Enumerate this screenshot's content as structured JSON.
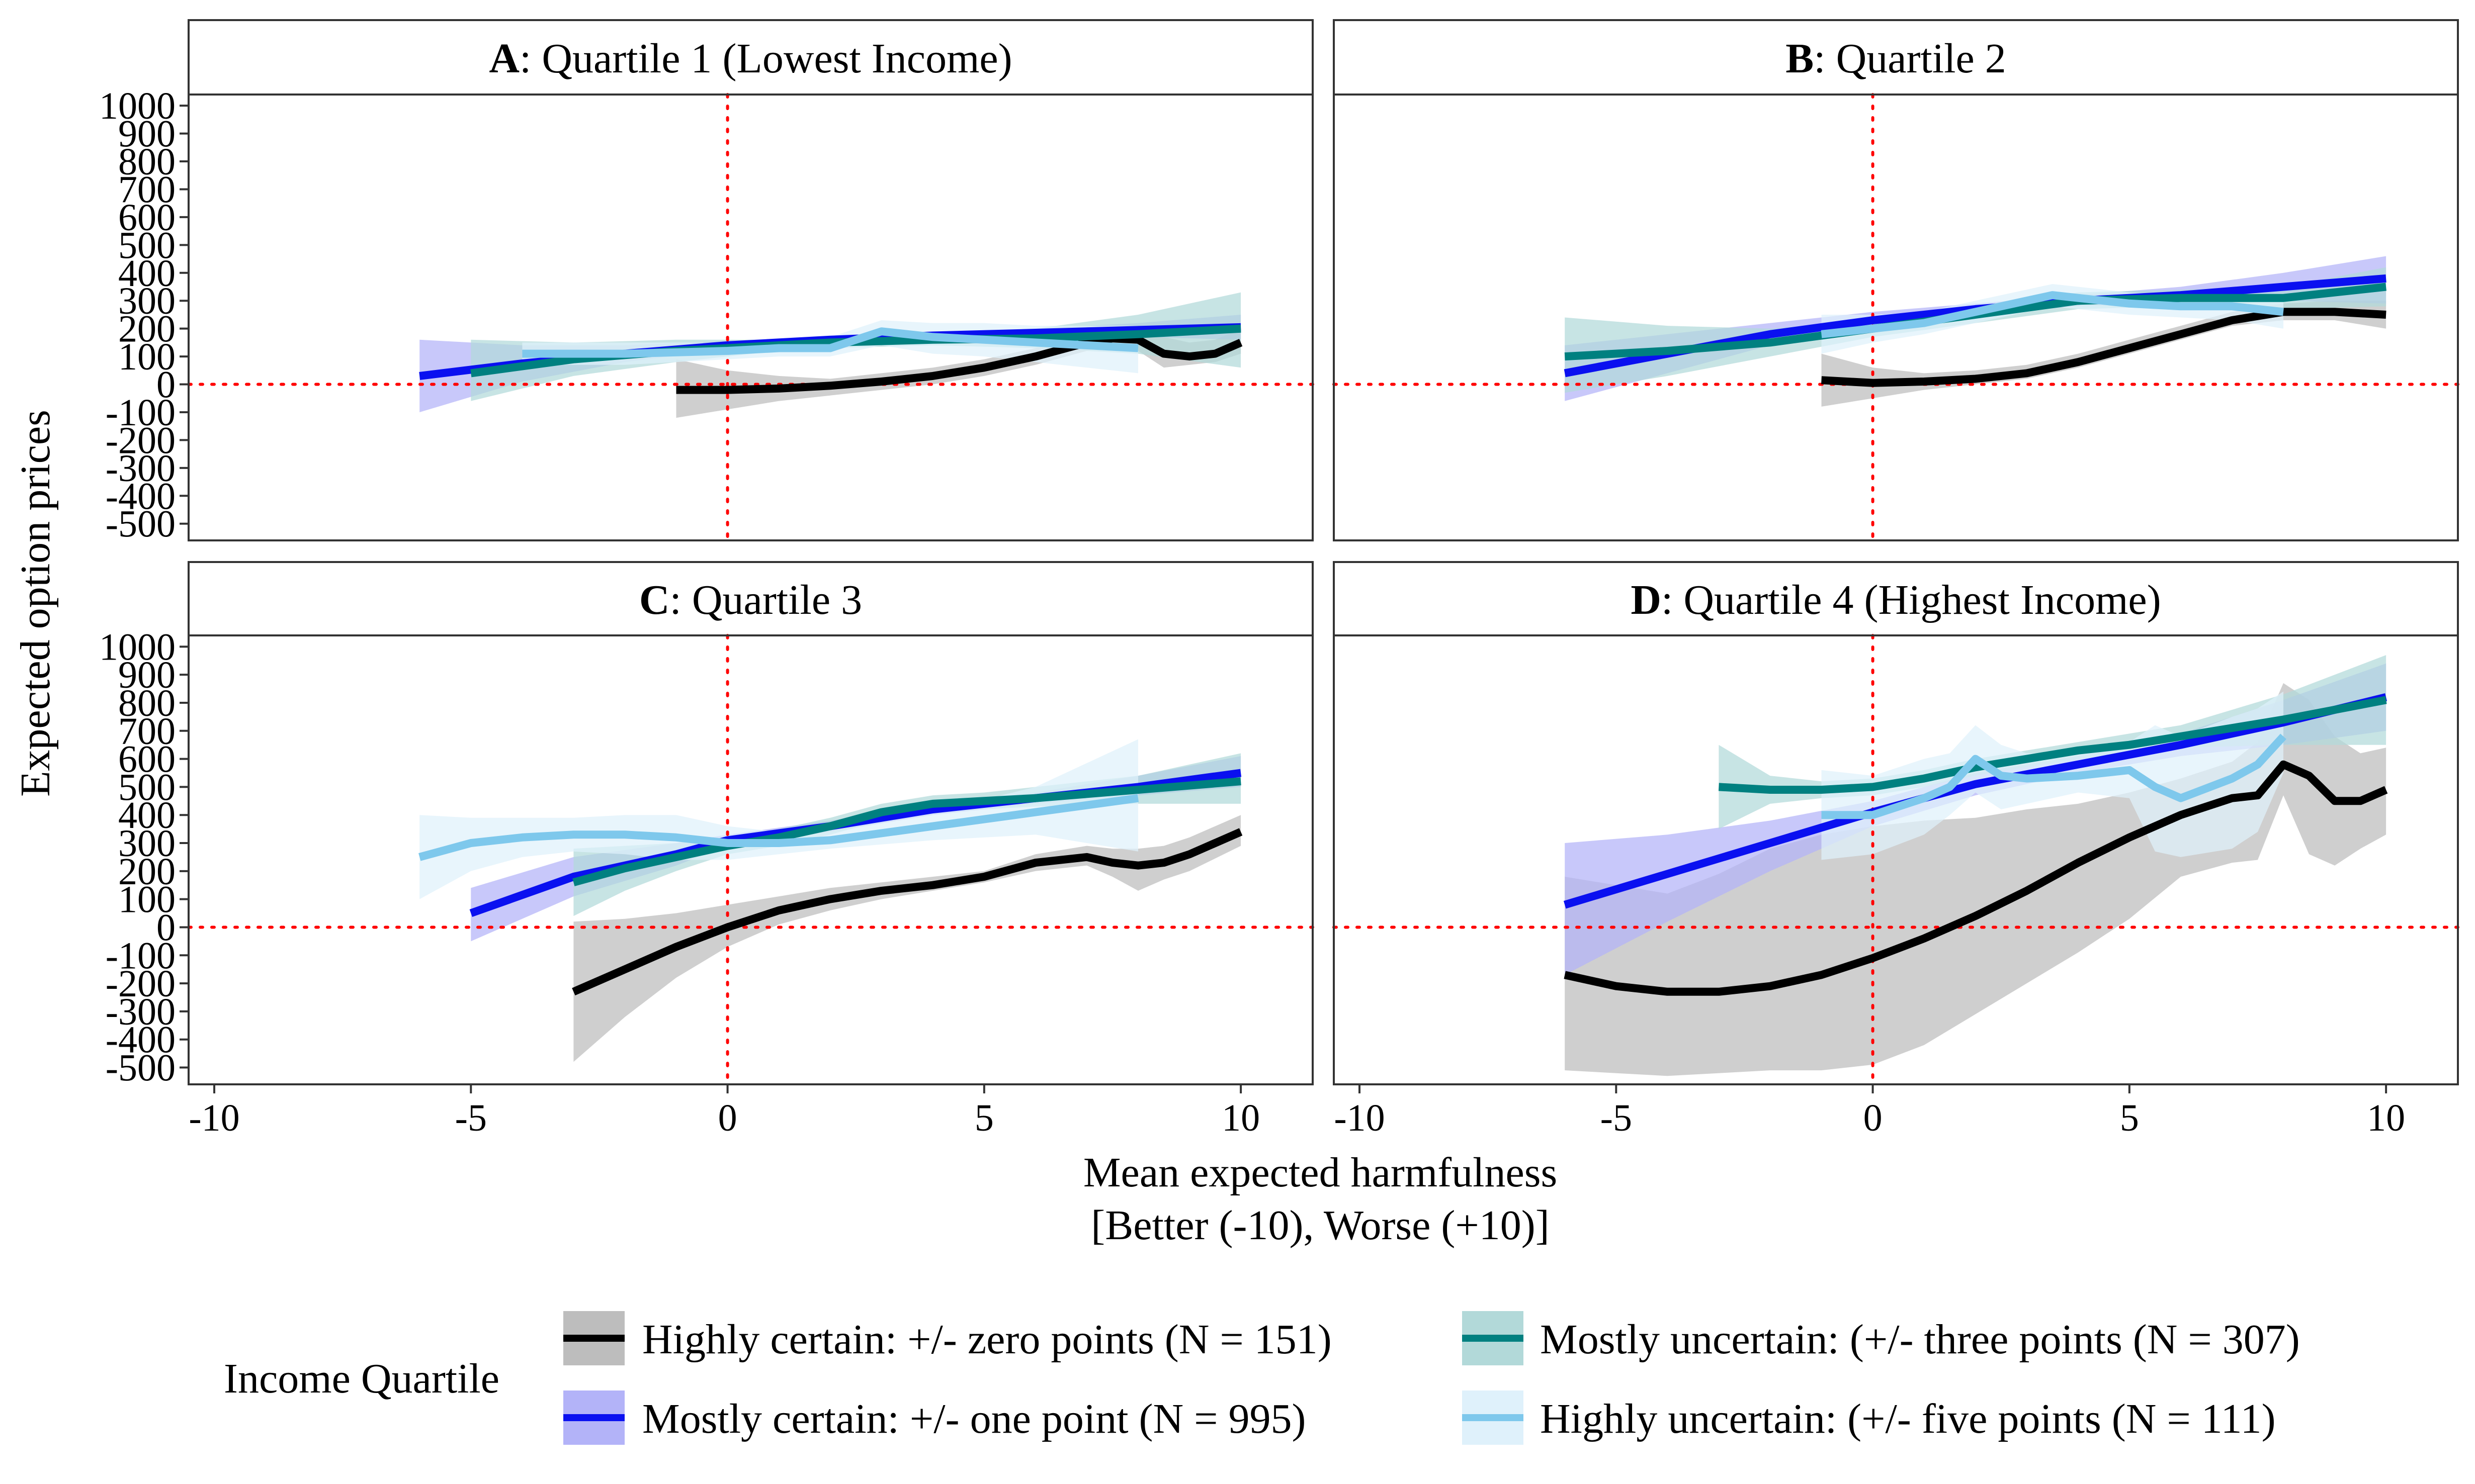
{
  "figure": {
    "xlabel_line1": "Mean expected harmfulness",
    "xlabel_line2": "[Better (-10), Worse (+10)]",
    "ylabel": "Expected option prices"
  },
  "axes": {
    "x_ticks": [
      -10,
      -5,
      0,
      5,
      10
    ],
    "y_ticks": [
      -500,
      -400,
      -300,
      -200,
      -100,
      0,
      100,
      200,
      300,
      400,
      500,
      600,
      700,
      800,
      900,
      1000
    ],
    "xlim": [
      -10.5,
      11.4
    ],
    "ylim": [
      -560,
      1040
    ],
    "reference_lines": {
      "x": 0,
      "y": 0,
      "color": "#ff0000",
      "style": "dotted"
    }
  },
  "legend": {
    "title": "Income Quartile",
    "items": [
      {
        "label": "Highly certain: +/- zero points (N = 151)",
        "color": "#000000",
        "band": "#bdbdbd"
      },
      {
        "label": "Mostly certain: +/- one point (N = 995)",
        "color": "#0a10f0",
        "band": "#b3b3f8"
      },
      {
        "label": "Mostly uncertain: (+/- three points (N = 307)",
        "color": "#008080",
        "band": "#b2d9d9"
      },
      {
        "label": "Highly uncertain: (+/- five points (N = 111)",
        "color": "#7ec8ec",
        "band": "#dff1fb"
      }
    ]
  },
  "chart_data": [
    {
      "type": "line",
      "panel": "A",
      "title_letter": "A",
      "title_rest": ": Quartile 1 (Lowest Income)",
      "series": [
        {
          "name": "Highly certain: +/- zero points (N = 151)",
          "color": "#000000",
          "band_color": "#bdbdbd",
          "x": [
            -1,
            0,
            1,
            2,
            3,
            4,
            5,
            6,
            7,
            7.5,
            8,
            8.5,
            9,
            9.5,
            10
          ],
          "y": [
            -20,
            -20,
            -15,
            -5,
            10,
            30,
            60,
            100,
            150,
            165,
            160,
            110,
            100,
            110,
            150
          ],
          "lower": [
            -120,
            -90,
            -60,
            -40,
            -20,
            0,
            30,
            70,
            120,
            140,
            120,
            60,
            70,
            80,
            110
          ],
          "upper": [
            90,
            50,
            30,
            20,
            40,
            60,
            90,
            130,
            180,
            200,
            200,
            170,
            150,
            160,
            200
          ]
        },
        {
          "name": "Mostly certain: +/- one point (N = 995)",
          "color": "#0a10f0",
          "band_color": "#b3b3f8",
          "x": [
            -6,
            -4,
            -2,
            0,
            2,
            4,
            6,
            8,
            10
          ],
          "y": [
            30,
            75,
            110,
            140,
            160,
            175,
            185,
            195,
            205
          ],
          "lower": [
            -100,
            10,
            80,
            125,
            150,
            165,
            170,
            170,
            160
          ],
          "upper": [
            160,
            140,
            140,
            155,
            170,
            185,
            200,
            220,
            250
          ]
        },
        {
          "name": "Mostly uncertain: (+/- three points (N = 307)",
          "color": "#008080",
          "band_color": "#b2d9d9",
          "x": [
            -5,
            -3,
            -1,
            0,
            1,
            2,
            4,
            6,
            8,
            10
          ],
          "y": [
            40,
            90,
            120,
            130,
            140,
            150,
            160,
            165,
            180,
            200
          ],
          "lower": [
            -60,
            30,
            80,
            100,
            120,
            130,
            140,
            130,
            110,
            60
          ],
          "upper": [
            160,
            150,
            160,
            160,
            160,
            170,
            180,
            200,
            250,
            330
          ]
        },
        {
          "name": "Highly uncertain: (+/- five points (N = 111)",
          "color": "#7ec8ec",
          "band_color": "#dff1fb",
          "x": [
            -4,
            -2,
            0,
            1,
            2,
            2.5,
            3,
            4,
            5,
            6,
            7,
            8
          ],
          "y": [
            110,
            110,
            120,
            130,
            130,
            160,
            190,
            170,
            160,
            150,
            140,
            130
          ],
          "lower": [
            70,
            70,
            90,
            100,
            100,
            120,
            140,
            110,
            100,
            80,
            60,
            40
          ],
          "upper": [
            150,
            150,
            150,
            160,
            170,
            200,
            230,
            220,
            220,
            210,
            210,
            210
          ]
        }
      ]
    },
    {
      "type": "line",
      "panel": "B",
      "title_letter": "B",
      "title_rest": ": Quartile 2",
      "series": [
        {
          "name": "Highly certain: +/- zero points (N = 151)",
          "color": "#000000",
          "band_color": "#bdbdbd",
          "x": [
            -1,
            0,
            1,
            2,
            3,
            4,
            5,
            6,
            7,
            8,
            9,
            10
          ],
          "y": [
            15,
            5,
            10,
            20,
            40,
            80,
            130,
            180,
            230,
            260,
            260,
            250
          ],
          "lower": [
            -80,
            -50,
            -20,
            0,
            20,
            60,
            110,
            160,
            210,
            230,
            230,
            200
          ],
          "upper": [
            110,
            60,
            40,
            50,
            70,
            110,
            160,
            210,
            260,
            290,
            300,
            300
          ]
        },
        {
          "name": "Mostly certain: +/- one point (N = 995)",
          "color": "#0a10f0",
          "band_color": "#b3b3f8",
          "x": [
            -6,
            -4,
            -2,
            0,
            2,
            4,
            6,
            8,
            10
          ],
          "y": [
            40,
            110,
            180,
            230,
            270,
            300,
            320,
            350,
            380
          ],
          "lower": [
            -60,
            40,
            140,
            200,
            250,
            280,
            290,
            300,
            290
          ],
          "upper": [
            140,
            180,
            220,
            260,
            290,
            320,
            350,
            400,
            460
          ]
        },
        {
          "name": "Mostly uncertain: (+/- three points (N = 307)",
          "color": "#008080",
          "band_color": "#b2d9d9",
          "x": [
            -6,
            -4,
            -2,
            0,
            2,
            4,
            6,
            8,
            10
          ],
          "y": [
            100,
            120,
            150,
            200,
            250,
            300,
            310,
            310,
            350
          ],
          "lower": [
            -30,
            30,
            100,
            170,
            220,
            270,
            280,
            270,
            280
          ],
          "upper": [
            240,
            210,
            200,
            230,
            280,
            330,
            340,
            350,
            420
          ]
        },
        {
          "name": "Highly uncertain: (+/- five points (N = 111)",
          "color": "#7ec8ec",
          "band_color": "#dff1fb",
          "x": [
            -1,
            0,
            1,
            2,
            3,
            3.5,
            4,
            5,
            6,
            7,
            8
          ],
          "y": [
            180,
            200,
            220,
            260,
            300,
            320,
            310,
            290,
            280,
            280,
            260
          ],
          "lower": [
            110,
            150,
            180,
            220,
            260,
            280,
            270,
            250,
            240,
            230,
            200
          ],
          "upper": [
            250,
            250,
            260,
            300,
            340,
            360,
            350,
            330,
            320,
            330,
            320
          ]
        }
      ]
    },
    {
      "type": "line",
      "panel": "C",
      "title_letter": "C",
      "title_rest": ": Quartile 3",
      "series": [
        {
          "name": "Highly certain: +/- zero points (N = 151)",
          "color": "#000000",
          "band_color": "#bdbdbd",
          "x": [
            -3,
            -2,
            -1,
            0,
            1,
            2,
            3,
            4,
            5,
            6,
            7,
            7.5,
            8,
            8.5,
            9,
            10
          ],
          "y": [
            -230,
            -150,
            -70,
            0,
            60,
            100,
            130,
            150,
            180,
            230,
            250,
            230,
            220,
            230,
            260,
            340
          ],
          "lower": [
            -480,
            -320,
            -180,
            -70,
            10,
            60,
            100,
            130,
            160,
            200,
            220,
            180,
            130,
            170,
            200,
            290
          ],
          "upper": [
            20,
            30,
            50,
            80,
            110,
            140,
            160,
            180,
            200,
            260,
            290,
            280,
            280,
            290,
            320,
            400
          ]
        },
        {
          "name": "Mostly certain: +/- one point (N = 995)",
          "color": "#0a10f0",
          "band_color": "#b3b3f8",
          "x": [
            -5,
            -3,
            -1,
            0,
            2,
            4,
            6,
            8,
            10
          ],
          "y": [
            50,
            180,
            260,
            310,
            360,
            420,
            460,
            500,
            550
          ],
          "lower": [
            -50,
            110,
            220,
            290,
            340,
            400,
            440,
            470,
            500
          ],
          "upper": [
            140,
            250,
            300,
            330,
            380,
            440,
            480,
            540,
            610
          ]
        },
        {
          "name": "Mostly uncertain: (+/- three points (N = 307)",
          "color": "#008080",
          "band_color": "#b2d9d9",
          "x": [
            -3,
            -2,
            -1,
            0,
            1,
            2,
            3,
            4,
            5,
            6,
            8,
            10
          ],
          "y": [
            160,
            210,
            250,
            290,
            320,
            360,
            410,
            440,
            450,
            460,
            490,
            520
          ],
          "lower": [
            40,
            130,
            200,
            260,
            290,
            330,
            380,
            410,
            420,
            430,
            440,
            440
          ],
          "upper": [
            280,
            290,
            300,
            320,
            350,
            390,
            440,
            470,
            480,
            500,
            540,
            620
          ]
        },
        {
          "name": "Highly uncertain: (+/- five points (N = 111)",
          "color": "#7ec8ec",
          "band_color": "#dff1fb",
          "x": [
            -6,
            -5,
            -4,
            -3,
            -2,
            -1,
            0,
            1,
            2,
            4,
            6,
            8
          ],
          "y": [
            250,
            300,
            320,
            330,
            330,
            320,
            300,
            300,
            310,
            360,
            410,
            460
          ],
          "lower": [
            100,
            200,
            250,
            270,
            260,
            240,
            240,
            260,
            280,
            310,
            330,
            270
          ],
          "upper": [
            400,
            390,
            390,
            390,
            400,
            400,
            360,
            340,
            350,
            410,
            500,
            670
          ]
        }
      ]
    },
    {
      "type": "line",
      "panel": "D",
      "title_letter": "D",
      "title_rest": ": Quartile 4 (Highest Income)",
      "series": [
        {
          "name": "Highly certain: +/- zero points (N = 151)",
          "color": "#000000",
          "band_color": "#bdbdbd",
          "x": [
            -6,
            -5,
            -4,
            -3,
            -2,
            -1,
            0,
            1,
            2,
            3,
            4,
            5,
            6,
            7,
            7.5,
            8,
            8.5,
            9,
            9.5,
            10
          ],
          "y": [
            -170,
            -210,
            -230,
            -230,
            -210,
            -170,
            -110,
            -40,
            40,
            130,
            230,
            320,
            400,
            460,
            470,
            580,
            540,
            450,
            450,
            490
          ],
          "lower": [
            -510,
            -520,
            -530,
            -520,
            -510,
            -510,
            -490,
            -420,
            -310,
            -200,
            -90,
            30,
            180,
            230,
            240,
            470,
            260,
            220,
            280,
            330
          ],
          "upper": [
            180,
            150,
            120,
            190,
            280,
            330,
            360,
            380,
            390,
            420,
            440,
            480,
            530,
            590,
            660,
            870,
            810,
            680,
            620,
            640
          ]
        },
        {
          "name": "Mostly certain: +/- one point (N = 995)",
          "color": "#0a10f0",
          "band_color": "#b3b3f8",
          "x": [
            -6,
            -4,
            -2,
            0,
            2,
            4,
            6,
            8,
            10
          ],
          "y": [
            80,
            190,
            300,
            410,
            510,
            580,
            650,
            730,
            820
          ],
          "lower": [
            -170,
            20,
            200,
            360,
            470,
            550,
            610,
            650,
            700
          ],
          "upper": [
            300,
            330,
            380,
            450,
            550,
            610,
            690,
            810,
            940
          ]
        },
        {
          "name": "Mostly uncertain: (+/- three points (N = 307)",
          "color": "#008080",
          "band_color": "#b2d9d9",
          "x": [
            -3,
            -2,
            -1,
            0,
            1,
            2,
            3,
            4,
            5,
            6,
            8,
            10
          ],
          "y": [
            500,
            490,
            490,
            500,
            530,
            570,
            600,
            630,
            650,
            680,
            740,
            810
          ],
          "lower": [
            350,
            440,
            460,
            470,
            500,
            540,
            570,
            600,
            620,
            640,
            650,
            650
          ],
          "upper": [
            650,
            540,
            520,
            530,
            560,
            600,
            630,
            660,
            690,
            720,
            830,
            970
          ]
        },
        {
          "name": "Highly uncertain: (+/- five points (N = 111)",
          "color": "#7ec8ec",
          "band_color": "#dff1fb",
          "x": [
            -1,
            0,
            1,
            1.5,
            2,
            2.5,
            3,
            4,
            5,
            5.5,
            6,
            7,
            7.5,
            8
          ],
          "y": [
            400,
            400,
            460,
            500,
            600,
            540,
            530,
            540,
            560,
            500,
            460,
            530,
            580,
            680
          ],
          "lower": [
            240,
            260,
            330,
            400,
            480,
            420,
            440,
            480,
            460,
            270,
            250,
            280,
            340,
            550
          ],
          "upper": [
            560,
            540,
            600,
            620,
            720,
            650,
            620,
            620,
            660,
            720,
            680,
            750,
            780,
            840
          ]
        }
      ]
    }
  ]
}
